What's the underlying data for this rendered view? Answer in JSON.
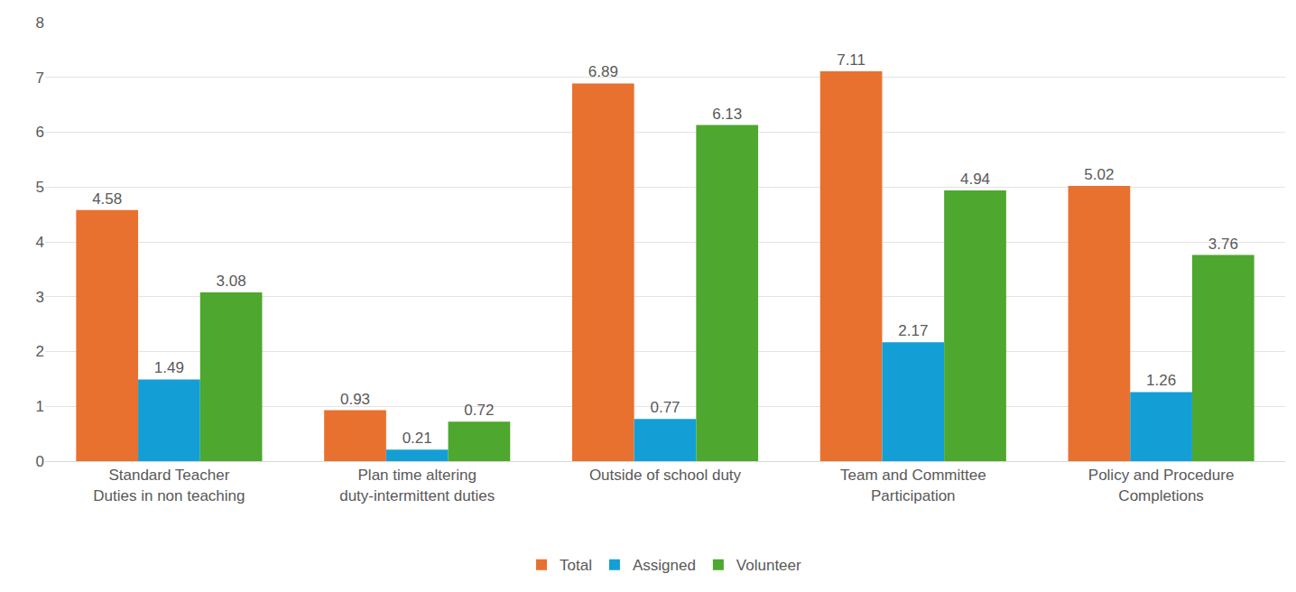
{
  "chart_data": {
    "type": "bar",
    "categories": [
      "Standard Teacher Duties in non teaching",
      "Plan time altering duty-intermittent duties",
      "Outside of school duty",
      "Team and Committee Participation",
      "Policy and Procedure Completions"
    ],
    "series": [
      {
        "name": "Total",
        "color": "#e8712f",
        "values": [
          4.58,
          0.93,
          6.89,
          7.11,
          5.02
        ]
      },
      {
        "name": "Assigned",
        "color": "#139fd6",
        "values": [
          1.49,
          0.21,
          0.77,
          2.17,
          1.26
        ]
      },
      {
        "name": "Volunteer",
        "color": "#4ea72e",
        "values": [
          3.08,
          0.72,
          6.13,
          4.94,
          3.76
        ]
      }
    ],
    "ylim": [
      0,
      8
    ],
    "yticks": [
      0,
      1,
      2,
      3,
      4,
      5,
      6,
      7,
      8
    ],
    "grid": true,
    "data_labels": true,
    "legend": "bottom"
  }
}
